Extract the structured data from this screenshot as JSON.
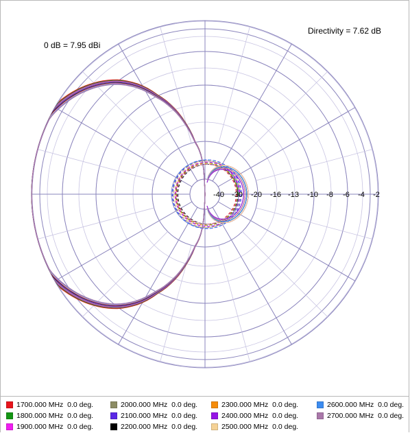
{
  "chart_data": {
    "type": "polar",
    "annotations": {
      "reference": "0 dB = 7.95 dBi",
      "directivity": "Directivity = 7.62 dB"
    },
    "radial_ticks": [
      "-40",
      "-30",
      "-20",
      "-16",
      "-13",
      "-10",
      "-8",
      "-6",
      "-4",
      "-2"
    ],
    "radial_tick_db": [
      -40,
      -30,
      -20,
      -16,
      -13,
      -10,
      -8,
      -6,
      -4,
      -2
    ],
    "grid_rings_db": [
      -40,
      -30,
      -20,
      -10,
      -6,
      -3,
      0
    ],
    "angle_spokes_deg": 15,
    "series": [
      {
        "name": "1700.000 MHz",
        "phase": "0.0 deg.",
        "color": "#e8141c"
      },
      {
        "name": "1800.000 MHz",
        "phase": "0.0 deg.",
        "color": "#149614"
      },
      {
        "name": "1900.000 MHz",
        "phase": "0.0 deg.",
        "color": "#f01ef0"
      },
      {
        "name": "2000.000 MHz",
        "phase": "0.0 deg.",
        "color": "#8c8c64"
      },
      {
        "name": "2100.000 MHz",
        "phase": "0.0 deg.",
        "color": "#5a28e6"
      },
      {
        "name": "2200.000 MHz",
        "phase": "0.0 deg.",
        "color": "#000000"
      },
      {
        "name": "2300.000 MHz",
        "phase": "0.0 deg.",
        "color": "#f58c0a"
      },
      {
        "name": "2400.000 MHz",
        "phase": "0.0 deg.",
        "color": "#9614e6"
      },
      {
        "name": "2500.000 MHz",
        "phase": "0.0 deg.",
        "color": "#f5d296"
      },
      {
        "name": "2600.000 MHz",
        "phase": "0.0 deg.",
        "color": "#3c8cf0"
      },
      {
        "name": "2700.000 MHz",
        "phase": "0.0 deg.",
        "color": "#aa78aa"
      }
    ],
    "patterns": {
      "main_lobe": {
        "peak_direction_deg": 180,
        "peak_db_by_series": [
          0,
          -0.1,
          -0.2,
          -0.3,
          -0.4,
          -0.5,
          -0.55,
          -0.6,
          -0.65,
          -0.7,
          -0.75
        ]
      },
      "back_lobe_peak_db": -25
    },
    "grid": true,
    "legend_position": "bottom"
  }
}
